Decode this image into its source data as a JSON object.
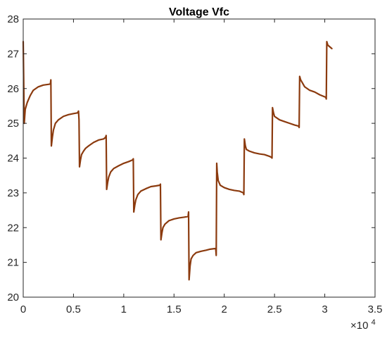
{
  "chart_data": {
    "type": "line",
    "title": "Voltage Vfc",
    "xlabel": "",
    "ylabel": "",
    "x_exponent_label": "×10",
    "x_exponent_power": "4",
    "xlim": [
      0,
      3.5
    ],
    "ylim": [
      20,
      28
    ],
    "x_ticks": [
      0,
      0.5,
      1,
      1.5,
      2,
      2.5,
      3,
      3.5
    ],
    "x_tick_labels": [
      "0",
      "0.5",
      "1",
      "1.5",
      "2",
      "2.5",
      "3",
      "3.5"
    ],
    "y_ticks": [
      20,
      21,
      22,
      23,
      24,
      25,
      26,
      27,
      28
    ],
    "y_tick_labels": [
      "20",
      "21",
      "22",
      "23",
      "24",
      "25",
      "26",
      "27",
      "28"
    ],
    "grid": false,
    "series": [
      {
        "color": "#8b3a0e",
        "x": [
          0.0,
          0.01,
          0.02,
          0.04,
          0.07,
          0.1,
          0.15,
          0.2,
          0.25,
          0.27,
          0.275,
          0.28,
          0.29,
          0.3,
          0.32,
          0.35,
          0.4,
          0.45,
          0.5,
          0.54,
          0.55,
          0.555,
          0.56,
          0.57,
          0.58,
          0.6,
          0.62,
          0.65,
          0.7,
          0.75,
          0.8,
          0.82,
          0.825,
          0.83,
          0.84,
          0.85,
          0.87,
          0.9,
          0.95,
          1.0,
          1.05,
          1.09,
          1.095,
          1.1,
          1.11,
          1.12,
          1.14,
          1.17,
          1.22,
          1.27,
          1.32,
          1.36,
          1.365,
          1.37,
          1.38,
          1.39,
          1.41,
          1.45,
          1.5,
          1.55,
          1.6,
          1.64,
          1.645,
          1.65,
          1.66,
          1.67,
          1.69,
          1.72,
          1.77,
          1.82,
          1.86,
          1.915,
          1.92,
          1.925,
          1.93,
          1.94,
          1.96,
          2.0,
          2.05,
          2.1,
          2.15,
          2.19,
          2.195,
          2.2,
          2.21,
          2.22,
          2.25,
          2.3,
          2.35,
          2.4,
          2.45,
          2.47,
          2.475,
          2.48,
          2.49,
          2.5,
          2.55,
          2.6,
          2.65,
          2.7,
          2.74,
          2.745,
          2.75,
          2.76,
          2.78,
          2.8,
          2.85,
          2.9,
          2.95,
          3.01,
          3.015,
          3.02,
          3.03,
          3.05,
          3.07
        ],
        "y": [
          27.35,
          25.0,
          25.4,
          25.6,
          25.8,
          25.95,
          26.05,
          26.1,
          26.12,
          26.13,
          26.25,
          24.35,
          24.6,
          24.8,
          25.0,
          25.1,
          25.2,
          25.25,
          25.28,
          25.3,
          25.35,
          25.1,
          23.75,
          23.95,
          24.1,
          24.2,
          24.28,
          24.35,
          24.45,
          24.52,
          24.55,
          24.6,
          24.65,
          23.1,
          23.3,
          23.45,
          23.6,
          23.7,
          23.78,
          23.85,
          23.9,
          23.95,
          23.98,
          22.45,
          22.65,
          22.8,
          22.95,
          23.05,
          23.12,
          23.18,
          23.2,
          23.22,
          23.25,
          21.65,
          21.85,
          22.0,
          22.1,
          22.2,
          22.25,
          22.28,
          22.3,
          22.32,
          22.45,
          20.5,
          20.9,
          21.1,
          21.2,
          21.28,
          21.32,
          21.35,
          21.38,
          21.4,
          21.2,
          23.85,
          23.6,
          23.35,
          23.22,
          23.15,
          23.1,
          23.07,
          23.05,
          23.0,
          22.95,
          24.55,
          24.35,
          24.25,
          24.2,
          24.15,
          24.12,
          24.1,
          24.05,
          24.02,
          24.0,
          25.45,
          25.3,
          25.2,
          25.1,
          25.05,
          25.0,
          24.95,
          24.92,
          24.88,
          26.35,
          26.25,
          26.15,
          26.05,
          25.95,
          25.9,
          25.82,
          25.75,
          25.7,
          27.35,
          27.25,
          27.2,
          27.15
        ]
      }
    ]
  }
}
